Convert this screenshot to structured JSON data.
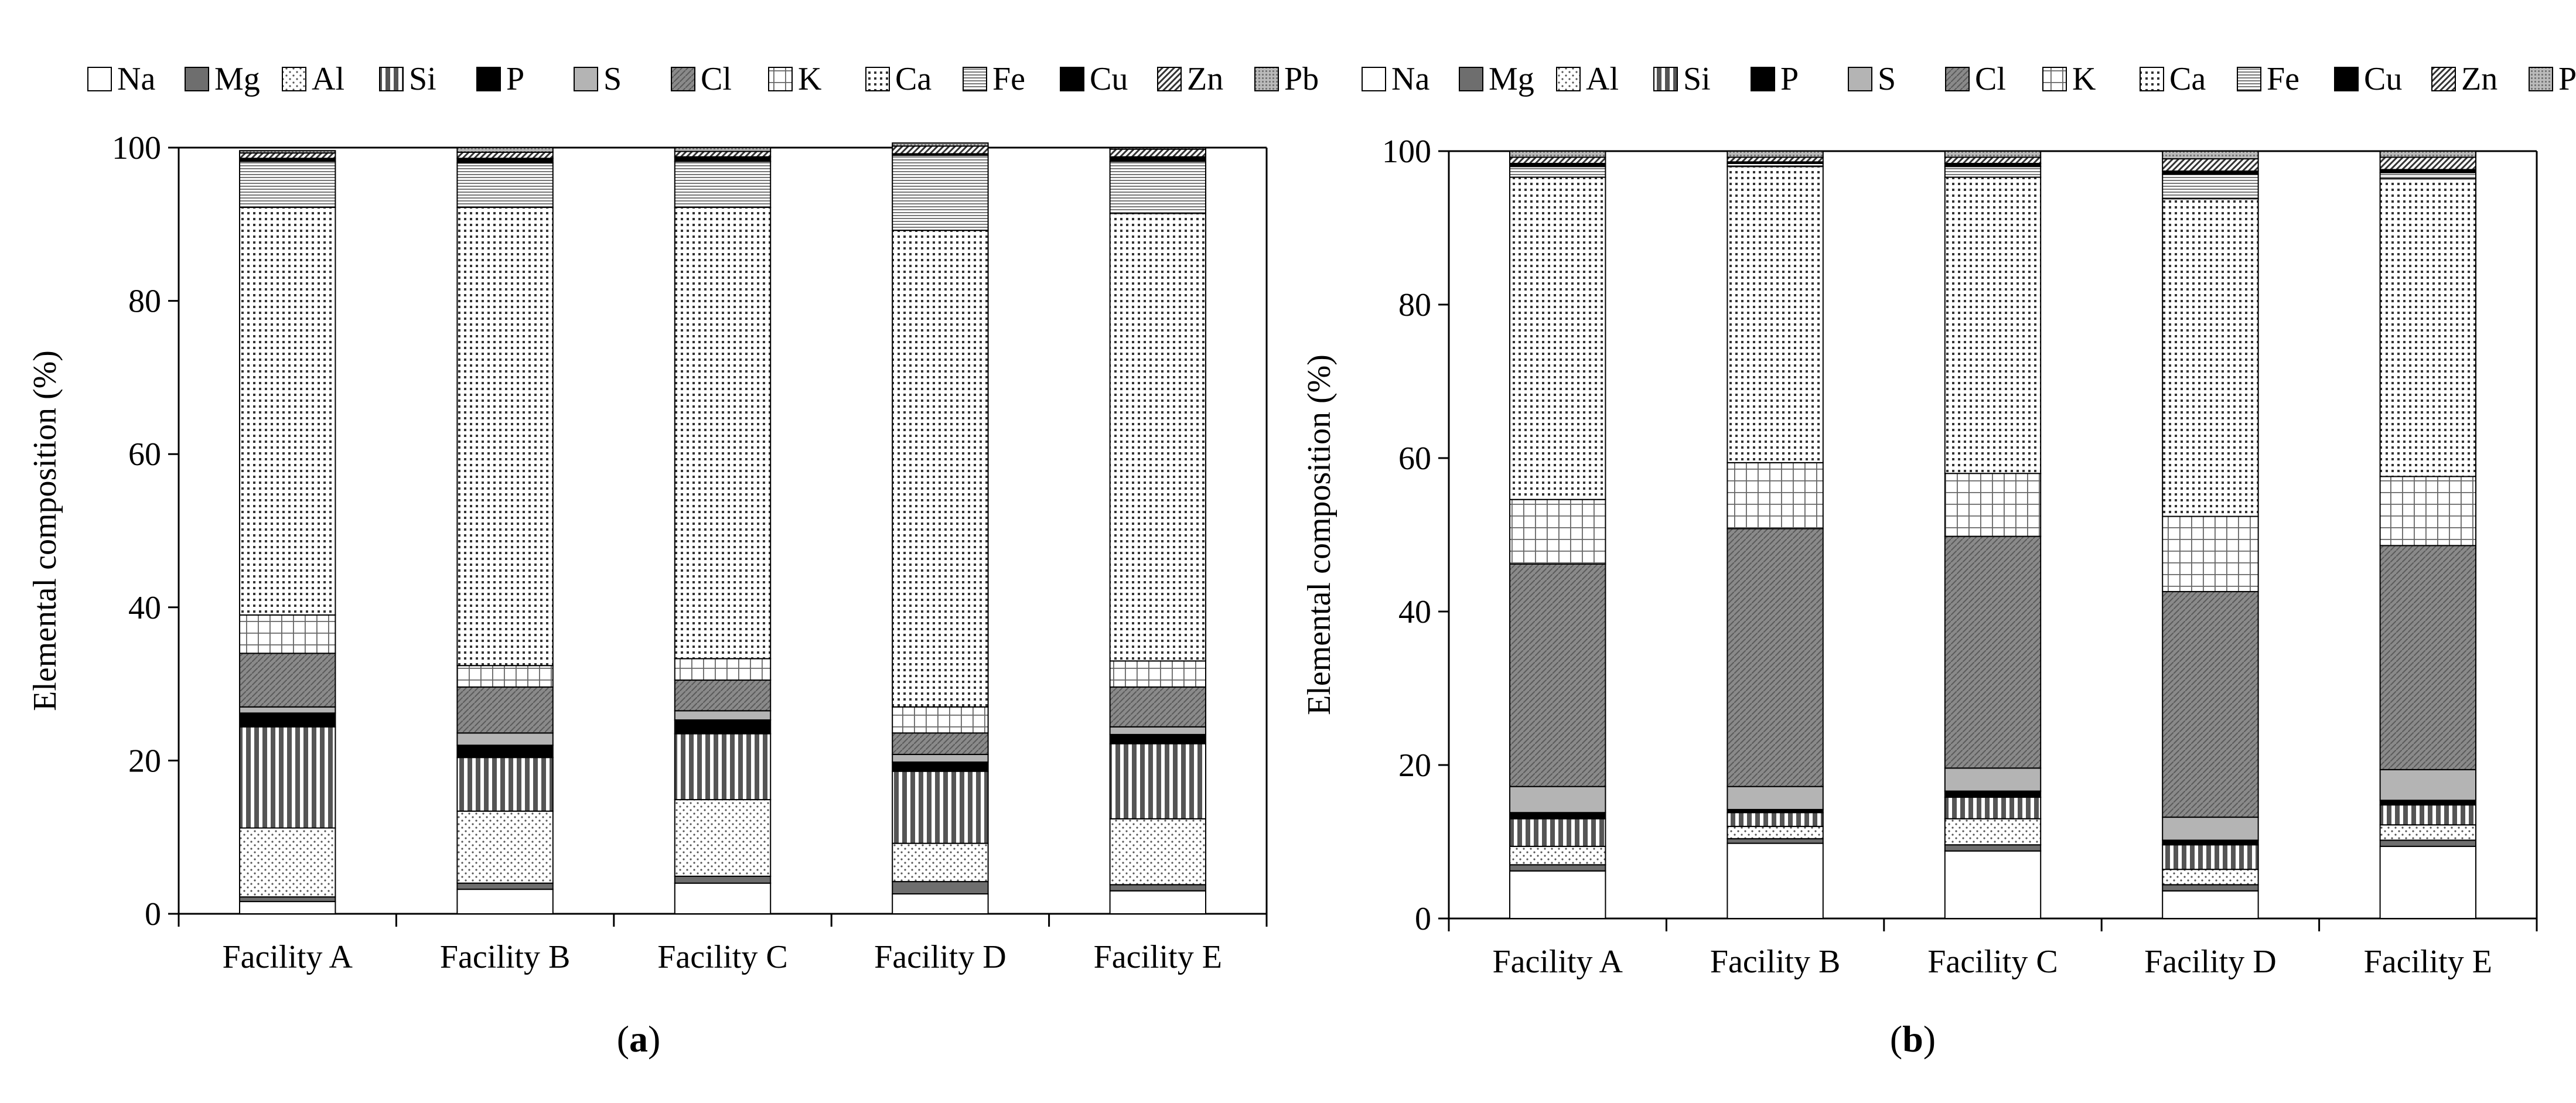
{
  "legend_labels": [
    "Na",
    "Mg",
    "Al",
    "Si",
    "P",
    "S",
    "Cl",
    "K",
    "Ca",
    "Fe",
    "Cu",
    "Zn",
    "Pb"
  ],
  "chart_data": [
    {
      "panel_label": "a",
      "type": "bar",
      "stacked": true,
      "ylabel": "Elemental composition (%)",
      "ylim": [
        0,
        100
      ],
      "yticks": [
        0,
        20,
        40,
        60,
        80,
        100
      ],
      "categories": [
        "Facility A",
        "Facility B",
        "Facility C",
        "Facility D",
        "Facility E"
      ],
      "series": [
        {
          "name": "Na",
          "values": [
            1.6,
            3.2,
            4.0,
            2.6,
            3.0
          ]
        },
        {
          "name": "Mg",
          "values": [
            0.6,
            0.8,
            0.9,
            1.6,
            0.8
          ]
        },
        {
          "name": "Al",
          "values": [
            9.0,
            9.4,
            10.0,
            5.0,
            8.6
          ]
        },
        {
          "name": "Si",
          "values": [
            13.2,
            7.0,
            8.6,
            9.4,
            9.8
          ]
        },
        {
          "name": "P",
          "values": [
            1.8,
            1.6,
            1.8,
            1.2,
            1.2
          ]
        },
        {
          "name": "S",
          "values": [
            0.8,
            1.6,
            1.2,
            1.0,
            1.0
          ]
        },
        {
          "name": "Cl",
          "values": [
            7.0,
            6.0,
            4.0,
            2.8,
            5.2
          ]
        },
        {
          "name": "K",
          "values": [
            5.0,
            2.8,
            2.8,
            3.4,
            3.4
          ]
        },
        {
          "name": "Ca",
          "values": [
            53.2,
            59.8,
            58.9,
            62.2,
            58.4
          ]
        },
        {
          "name": "Fe",
          "values": [
            6.0,
            5.8,
            6.0,
            9.8,
            6.8
          ]
        },
        {
          "name": "Cu",
          "values": [
            0.4,
            0.6,
            0.6,
            0.2,
            0.6
          ]
        },
        {
          "name": "Zn",
          "values": [
            0.7,
            0.8,
            0.7,
            1.0,
            1.0
          ]
        },
        {
          "name": "Pb",
          "values": [
            0.3,
            0.6,
            0.5,
            0.4,
            0.2
          ]
        }
      ]
    },
    {
      "panel_label": "b",
      "type": "bar",
      "stacked": true,
      "ylabel": "Elemental composition (%)",
      "ylim": [
        0,
        100
      ],
      "yticks": [
        0,
        20,
        40,
        60,
        80,
        100
      ],
      "categories": [
        "Facility A",
        "Facility B",
        "Facility C",
        "Facility D",
        "Facility E"
      ],
      "series": [
        {
          "name": "Na",
          "values": [
            6.2,
            9.8,
            8.8,
            3.6,
            9.4
          ]
        },
        {
          "name": "Mg",
          "values": [
            0.8,
            0.6,
            0.8,
            0.8,
            0.8
          ]
        },
        {
          "name": "Al",
          "values": [
            2.4,
            1.6,
            3.4,
            2.0,
            2.0
          ]
        },
        {
          "name": "Si",
          "values": [
            3.6,
            1.8,
            2.8,
            3.2,
            2.6
          ]
        },
        {
          "name": "P",
          "values": [
            0.8,
            0.4,
            0.8,
            0.6,
            0.6
          ]
        },
        {
          "name": "S",
          "values": [
            3.4,
            3.0,
            3.0,
            3.0,
            4.0
          ]
        },
        {
          "name": "Cl",
          "values": [
            29.0,
            33.6,
            30.2,
            29.4,
            29.2
          ]
        },
        {
          "name": "K",
          "values": [
            8.4,
            8.6,
            8.2,
            9.8,
            9.0
          ]
        },
        {
          "name": "Ca",
          "values": [
            42.0,
            38.6,
            38.6,
            41.4,
            38.8
          ]
        },
        {
          "name": "Fe",
          "values": [
            1.4,
            0.4,
            1.4,
            3.2,
            0.8
          ]
        },
        {
          "name": "Cu",
          "values": [
            0.4,
            0.2,
            0.4,
            0.4,
            0.4
          ]
        },
        {
          "name": "Zn",
          "values": [
            0.8,
            0.6,
            0.8,
            1.6,
            1.6
          ]
        },
        {
          "name": "Pb",
          "values": [
            0.8,
            0.8,
            0.8,
            1.0,
            0.8
          ]
        }
      ]
    }
  ]
}
